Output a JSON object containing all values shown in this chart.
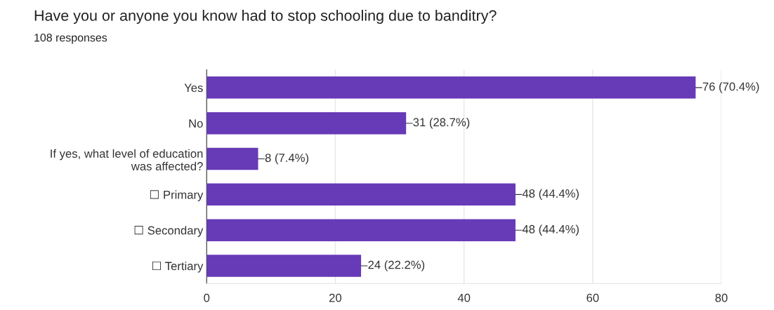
{
  "chart_data": {
    "type": "bar",
    "orientation": "horizontal",
    "title": "Have you or anyone you know had to stop schooling due to banditry?",
    "subtitle": "108 responses",
    "categories": [
      "Yes",
      "No",
      "If yes, what level of education\nwas affected?",
      "☐ Primary",
      "☐ Secondary",
      "☐ Tertiary"
    ],
    "values": [
      76,
      31,
      8,
      48,
      48,
      24
    ],
    "value_labels": [
      "76 (70.4%)",
      "31 (28.7%)",
      "8 (7.4%)",
      "48 (44.4%)",
      "48 (44.4%)",
      "24 (22.2%)"
    ],
    "color": "#673ab7",
    "xlim": [
      0,
      80
    ],
    "xticks": [
      0,
      20,
      40,
      60,
      80
    ],
    "grid": "x",
    "legend": false
  }
}
